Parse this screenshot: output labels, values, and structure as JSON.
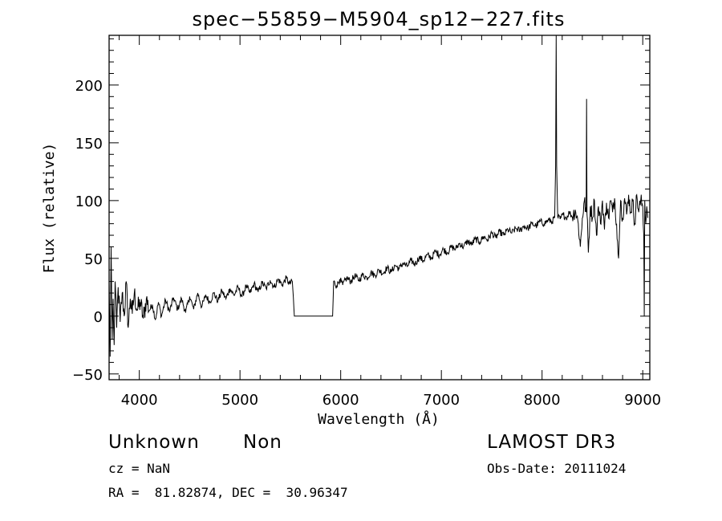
{
  "chart_data": {
    "type": "line",
    "title": "spec−55859−M5904_sp12−227.fits",
    "xlabel": "Wavelength (Å)",
    "ylabel": "Flux (relative)",
    "xlim": [
      3700,
      9070
    ],
    "ylim": [
      -55,
      243
    ],
    "xticks": [
      4000,
      5000,
      6000,
      7000,
      8000,
      9000
    ],
    "xtick_labels": [
      "4000",
      "5000",
      "6000",
      "7000",
      "8000",
      "9000"
    ],
    "yticks": [
      -50,
      0,
      50,
      100,
      150,
      200
    ],
    "ytick_labels": [
      "−50",
      "0",
      "50",
      "100",
      "150",
      "200"
    ],
    "series": [
      {
        "points": [
          [
            3700,
            30
          ],
          [
            3710,
            -35
          ],
          [
            3720,
            60
          ],
          [
            3730,
            -20
          ],
          [
            3740,
            15
          ],
          [
            3750,
            -25
          ],
          [
            3760,
            30
          ],
          [
            3775,
            -10
          ],
          [
            3790,
            25
          ],
          [
            3810,
            -5
          ],
          [
            3830,
            20
          ],
          [
            3850,
            0
          ],
          [
            3870,
            30
          ],
          [
            3890,
            -10
          ],
          [
            3910,
            15
          ],
          [
            3930,
            2
          ],
          [
            3950,
            20
          ],
          [
            3980,
            5
          ],
          [
            4010,
            12
          ],
          [
            4040,
            -2
          ],
          [
            4070,
            15
          ],
          [
            4100,
            5
          ],
          [
            4130,
            10
          ],
          [
            4160,
            -3
          ],
          [
            4190,
            12
          ],
          [
            4220,
            0
          ],
          [
            4260,
            14
          ],
          [
            4300,
            4
          ],
          [
            4340,
            16
          ],
          [
            4380,
            6
          ],
          [
            4420,
            15
          ],
          [
            4460,
            3
          ],
          [
            4500,
            17
          ],
          [
            4540,
            6
          ],
          [
            4580,
            20
          ],
          [
            4620,
            8
          ],
          [
            4660,
            18
          ],
          [
            4700,
            12
          ],
          [
            4740,
            20
          ],
          [
            4780,
            13
          ],
          [
            4820,
            22
          ],
          [
            4860,
            15
          ],
          [
            4900,
            24
          ],
          [
            4940,
            18
          ],
          [
            4980,
            25
          ],
          [
            5020,
            17
          ],
          [
            5060,
            26
          ],
          [
            5100,
            20
          ],
          [
            5140,
            28
          ],
          [
            5180,
            21
          ],
          [
            5220,
            29
          ],
          [
            5260,
            24
          ],
          [
            5300,
            31
          ],
          [
            5340,
            25
          ],
          [
            5380,
            32
          ],
          [
            5420,
            27
          ],
          [
            5460,
            33
          ],
          [
            5490,
            28
          ],
          [
            5520,
            30
          ],
          [
            5540,
            0
          ],
          [
            5920,
            0
          ],
          [
            5930,
            30
          ],
          [
            5960,
            26
          ],
          [
            5990,
            32
          ],
          [
            6020,
            27
          ],
          [
            6060,
            33
          ],
          [
            6100,
            30
          ],
          [
            6140,
            35
          ],
          [
            6180,
            31
          ],
          [
            6220,
            36
          ],
          [
            6260,
            33
          ],
          [
            6300,
            38
          ],
          [
            6340,
            35
          ],
          [
            6380,
            40
          ],
          [
            6420,
            37
          ],
          [
            6460,
            42
          ],
          [
            6500,
            38
          ],
          [
            6540,
            44
          ],
          [
            6580,
            41
          ],
          [
            6620,
            46
          ],
          [
            6660,
            43
          ],
          [
            6700,
            48
          ],
          [
            6740,
            45
          ],
          [
            6780,
            51
          ],
          [
            6820,
            48
          ],
          [
            6860,
            53
          ],
          [
            6900,
            50
          ],
          [
            6940,
            56
          ],
          [
            6980,
            53
          ],
          [
            7020,
            58
          ],
          [
            7060,
            55
          ],
          [
            7100,
            60
          ],
          [
            7140,
            58
          ],
          [
            7180,
            63
          ],
          [
            7220,
            60
          ],
          [
            7260,
            65
          ],
          [
            7300,
            62
          ],
          [
            7340,
            67
          ],
          [
            7380,
            64
          ],
          [
            7420,
            69
          ],
          [
            7460,
            66
          ],
          [
            7500,
            72
          ],
          [
            7540,
            68
          ],
          [
            7580,
            73
          ],
          [
            7620,
            70
          ],
          [
            7660,
            75
          ],
          [
            7700,
            72
          ],
          [
            7740,
            76
          ],
          [
            7780,
            74
          ],
          [
            7820,
            78
          ],
          [
            7860,
            76
          ],
          [
            7900,
            80
          ],
          [
            7940,
            78
          ],
          [
            7980,
            82
          ],
          [
            8020,
            80
          ],
          [
            8060,
            83
          ],
          [
            8100,
            82
          ],
          [
            8125,
            85
          ],
          [
            8135,
            130
          ],
          [
            8140,
            243
          ],
          [
            8145,
            130
          ],
          [
            8155,
            86
          ],
          [
            8180,
            84
          ],
          [
            8210,
            88
          ],
          [
            8240,
            85
          ],
          [
            8270,
            90
          ],
          [
            8300,
            86
          ],
          [
            8330,
            92
          ],
          [
            8360,
            80
          ],
          [
            8380,
            60
          ],
          [
            8400,
            85
          ],
          [
            8420,
            100
          ],
          [
            8438,
            90
          ],
          [
            8442,
            188
          ],
          [
            8446,
            88
          ],
          [
            8460,
            55
          ],
          [
            8480,
            95
          ],
          [
            8500,
            85
          ],
          [
            8520,
            100
          ],
          [
            8540,
            70
          ],
          [
            8560,
            95
          ],
          [
            8580,
            80
          ],
          [
            8600,
            100
          ],
          [
            8620,
            75
          ],
          [
            8640,
            98
          ],
          [
            8660,
            85
          ],
          [
            8680,
            100
          ],
          [
            8700,
            90
          ],
          [
            8720,
            102
          ],
          [
            8740,
            80
          ],
          [
            8760,
            50
          ],
          [
            8780,
            100
          ],
          [
            8800,
            85
          ],
          [
            8820,
            102
          ],
          [
            8840,
            88
          ],
          [
            8860,
            105
          ],
          [
            8880,
            90
          ],
          [
            8900,
            100
          ],
          [
            8920,
            80
          ],
          [
            8940,
            105
          ],
          [
            8960,
            90
          ],
          [
            8980,
            100
          ],
          [
            9000,
            95
          ],
          [
            9010,
            70
          ],
          [
            9015,
            0
          ],
          [
            9020,
            100
          ],
          [
            9030,
            80
          ],
          [
            9040,
            95
          ],
          [
            9050,
            85
          ]
        ]
      }
    ]
  },
  "info": {
    "object_class": "Unknown",
    "subclass": "Non",
    "survey": "LAMOST DR3",
    "redshift": "cz = NaN",
    "obs_date": "Obs-Date: 20111024",
    "coords": "RA =  81.82874, DEC =  30.96347"
  }
}
